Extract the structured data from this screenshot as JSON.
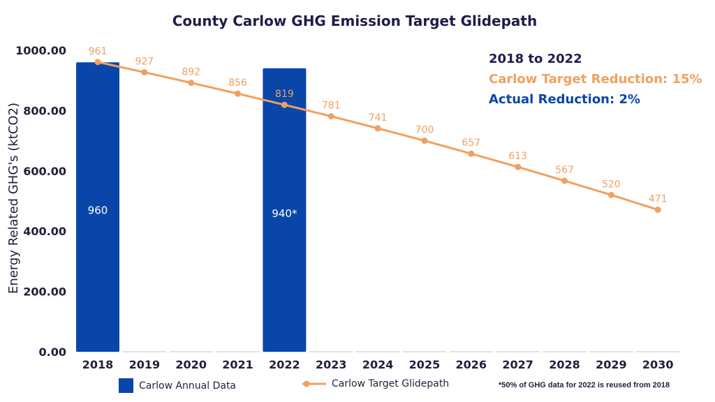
{
  "chart_data": {
    "type": "bar",
    "title": "County Carlow GHG Emission Target Glidepath",
    "ylabel": "Energy Related GHG's (ktCO2)",
    "ylim": [
      0,
      1000
    ],
    "yticks": [
      "0.00",
      "200.00",
      "400.00",
      "600.00",
      "800.00",
      "1000.00"
    ],
    "categories": [
      "2018",
      "2019",
      "2020",
      "2021",
      "2022",
      "2023",
      "2024",
      "2025",
      "2026",
      "2027",
      "2028",
      "2029",
      "2030"
    ],
    "series": [
      {
        "name": "Carlow Annual Data",
        "type": "bar",
        "values": [
          960,
          null,
          null,
          null,
          940,
          null,
          null,
          null,
          null,
          null,
          null,
          null,
          null
        ],
        "labels": [
          "960",
          "",
          "",
          "",
          "940*",
          "",
          "",
          "",
          "",
          "",
          "",
          "",
          ""
        ]
      },
      {
        "name": "Carlow Target Glidepath",
        "type": "line",
        "values": [
          961,
          927,
          892,
          856,
          819,
          781,
          741,
          700,
          657,
          613,
          567,
          520,
          471
        ]
      }
    ],
    "legend_position": "bottom",
    "grid": false
  },
  "annotations": {
    "period": "2018 to 2022",
    "target_reduction": "Carlow Target Reduction: 15%",
    "actual_reduction": "Actual Reduction: 2%"
  },
  "footnote": "*50% of GHG data for 2022 is reused from 2018",
  "colors": {
    "bar": "#0a45aa",
    "line": "#f0a060",
    "title": "#1d1d4a",
    "axis_text": "#1f1f3a",
    "baseline": "#c8dcd8"
  }
}
